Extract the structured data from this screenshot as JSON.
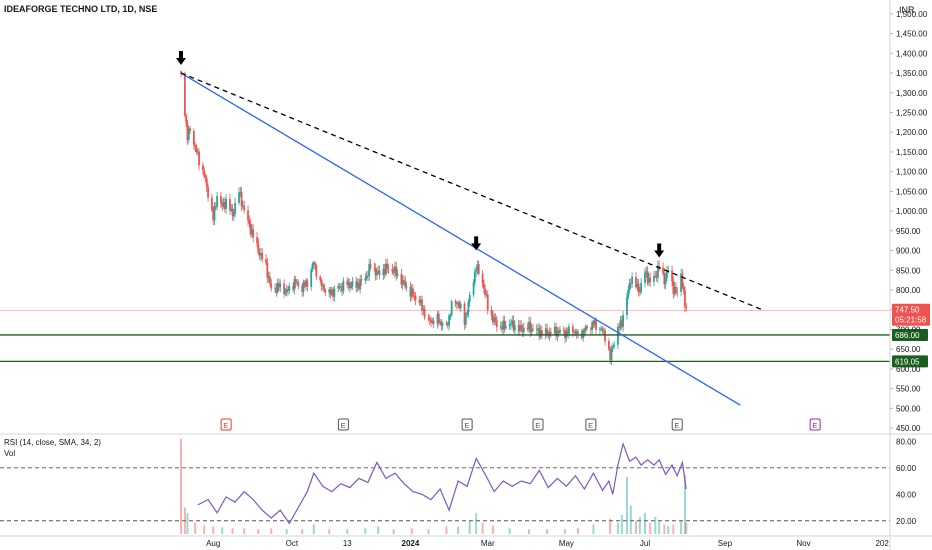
{
  "chart_data": {
    "type": "candlestick",
    "title": "IDEAFORGE TECHNO LTD, 1D, NSE",
    "currency": "INR",
    "y_axis_ticks": [
      "1,500.00",
      "1,450.00",
      "1,400.00",
      "1,350.00",
      "1,300.00",
      "1,250.00",
      "1,200.00",
      "1,150.00",
      "1,100.00",
      "1,050.00",
      "1,000.00",
      "950.00",
      "900.00",
      "850.00",
      "800.00",
      "750.00",
      "700.00",
      "650.00",
      "600.00",
      "550.00",
      "500.00",
      "450.00"
    ],
    "ylim": [
      440,
      1525
    ],
    "x_axis_labels": [
      "Aug",
      "Oct",
      "13",
      "2024",
      "Mar",
      "May",
      "Jul",
      "Sep",
      "Nov",
      "202"
    ],
    "series": [
      {
        "name": "price",
        "colors": {
          "up": "#26a69a",
          "down": "#ef5350"
        },
        "points": [
          {
            "d": "2023-07-07",
            "c": 1344
          },
          {
            "d": "2023-07-10",
            "c": 1255
          },
          {
            "d": "2023-07-12",
            "c": 1185
          },
          {
            "d": "2023-07-14",
            "c": 1210
          },
          {
            "d": "2023-07-18",
            "c": 1160
          },
          {
            "d": "2023-07-21",
            "c": 1130
          },
          {
            "d": "2023-07-25",
            "c": 1090
          },
          {
            "d": "2023-07-28",
            "c": 1045
          },
          {
            "d": "2023-08-01",
            "c": 980
          },
          {
            "d": "2023-08-04",
            "c": 1040
          },
          {
            "d": "2023-08-08",
            "c": 1010
          },
          {
            "d": "2023-08-11",
            "c": 1025
          },
          {
            "d": "2023-08-16",
            "c": 990
          },
          {
            "d": "2023-08-21",
            "c": 1050
          },
          {
            "d": "2023-08-25",
            "c": 1000
          },
          {
            "d": "2023-08-30",
            "c": 955
          },
          {
            "d": "2023-09-05",
            "c": 900
          },
          {
            "d": "2023-09-11",
            "c": 860
          },
          {
            "d": "2023-09-15",
            "c": 800
          },
          {
            "d": "2023-09-21",
            "c": 810
          },
          {
            "d": "2023-09-27",
            "c": 795
          },
          {
            "d": "2023-10-03",
            "c": 820
          },
          {
            "d": "2023-10-09",
            "c": 805
          },
          {
            "d": "2023-10-13",
            "c": 820
          },
          {
            "d": "2023-10-18",
            "c": 870
          },
          {
            "d": "2023-10-23",
            "c": 815
          },
          {
            "d": "2023-10-30",
            "c": 790
          },
          {
            "d": "2023-11-06",
            "c": 805
          },
          {
            "d": "2023-11-13",
            "c": 815
          },
          {
            "d": "2023-11-20",
            "c": 810
          },
          {
            "d": "2023-11-27",
            "c": 830
          },
          {
            "d": "2023-12-01",
            "c": 860
          },
          {
            "d": "2023-12-07",
            "c": 840
          },
          {
            "d": "2023-12-13",
            "c": 855
          },
          {
            "d": "2023-12-19",
            "c": 850
          },
          {
            "d": "2023-12-26",
            "c": 820
          },
          {
            "d": "2024-01-02",
            "c": 790
          },
          {
            "d": "2024-01-08",
            "c": 770
          },
          {
            "d": "2024-01-15",
            "c": 720
          },
          {
            "d": "2024-01-22",
            "c": 725
          },
          {
            "d": "2024-01-29",
            "c": 705
          },
          {
            "d": "2024-02-02",
            "c": 760
          },
          {
            "d": "2024-02-07",
            "c": 770
          },
          {
            "d": "2024-02-12",
            "c": 720
          },
          {
            "d": "2024-02-16",
            "c": 780
          },
          {
            "d": "2024-02-21",
            "c": 860
          },
          {
            "d": "2024-02-26",
            "c": 820
          },
          {
            "d": "2024-03-01",
            "c": 760
          },
          {
            "d": "2024-03-05",
            "c": 725
          },
          {
            "d": "2024-03-11",
            "c": 705
          },
          {
            "d": "2024-03-18",
            "c": 715
          },
          {
            "d": "2024-03-26",
            "c": 700
          },
          {
            "d": "2024-04-02",
            "c": 705
          },
          {
            "d": "2024-04-09",
            "c": 695
          },
          {
            "d": "2024-04-16",
            "c": 690
          },
          {
            "d": "2024-04-23",
            "c": 695
          },
          {
            "d": "2024-04-30",
            "c": 690
          },
          {
            "d": "2024-05-06",
            "c": 700
          },
          {
            "d": "2024-05-10",
            "c": 685
          },
          {
            "d": "2024-05-16",
            "c": 700
          },
          {
            "d": "2024-05-22",
            "c": 715
          },
          {
            "d": "2024-05-28",
            "c": 700
          },
          {
            "d": "2024-06-01",
            "c": 680
          },
          {
            "d": "2024-06-04",
            "c": 625
          },
          {
            "d": "2024-06-06",
            "c": 660
          },
          {
            "d": "2024-06-10",
            "c": 700
          },
          {
            "d": "2024-06-13",
            "c": 720
          },
          {
            "d": "2024-06-17",
            "c": 780
          },
          {
            "d": "2024-06-20",
            "c": 830
          },
          {
            "d": "2024-06-24",
            "c": 810
          },
          {
            "d": "2024-06-27",
            "c": 800
          },
          {
            "d": "2024-07-01",
            "c": 845
          },
          {
            "d": "2024-07-05",
            "c": 820
          },
          {
            "d": "2024-07-09",
            "c": 835
          },
          {
            "d": "2024-07-12",
            "c": 860
          },
          {
            "d": "2024-07-16",
            "c": 825
          },
          {
            "d": "2024-07-19",
            "c": 850
          },
          {
            "d": "2024-07-23",
            "c": 805
          },
          {
            "d": "2024-07-26",
            "c": 790
          },
          {
            "d": "2024-07-29",
            "c": 845
          },
          {
            "d": "2024-08-01",
            "c": 760
          },
          {
            "d": "2024-08-02",
            "c": 747.5
          }
        ]
      }
    ],
    "last_price": {
      "value": 747.5,
      "label": "747.50",
      "countdown": "05:21:58",
      "color": "#ef5350"
    },
    "horizontal_levels": [
      {
        "value": 686,
        "label": "686.00",
        "color": "#1b5e20"
      },
      {
        "value": 619.05,
        "label": "619.05",
        "color": "#1b5e20"
      }
    ],
    "hidden_axis_label": "700.00",
    "trendlines": [
      {
        "name": "descending support",
        "style": "solid",
        "color": "#2962ff",
        "from": {
          "d": "2023-07-07",
          "v": 1350
        },
        "to": {
          "d": "2024-09-13",
          "v": 508
        }
      },
      {
        "name": "descending resistance",
        "style": "dashed",
        "color": "#000000",
        "from": {
          "d": "2023-07-07",
          "v": 1350
        },
        "to": {
          "d": "2024-09-30",
          "v": 750
        }
      }
    ],
    "arrow_markers": [
      {
        "d": "2023-07-07",
        "v": 1350
      },
      {
        "d": "2024-02-21",
        "v": 880
      },
      {
        "d": "2024-07-12",
        "v": 862
      }
    ],
    "earnings_markers": [
      {
        "d": "2023-08-11",
        "label": "E",
        "color": "#e53935"
      },
      {
        "d": "2023-11-10",
        "label": "E",
        "color": "#555555"
      },
      {
        "d": "2024-02-14",
        "label": "E",
        "color": "#555555"
      },
      {
        "d": "2024-04-09",
        "label": "E",
        "color": "#555555"
      },
      {
        "d": "2024-05-20",
        "label": "E",
        "color": "#555555"
      },
      {
        "d": "2024-07-26",
        "label": "E",
        "color": "#555555"
      },
      {
        "d": "2024-11-10",
        "label": "E",
        "color": "#9c27b0"
      }
    ],
    "rsi_pane": {
      "legend": "RSI (14, close, SMA, 34, 2)",
      "vol_label": "Vol",
      "y_ticks": [
        "80.00",
        "60.00",
        "40.00",
        "20.00"
      ],
      "ylim": [
        10,
        84
      ],
      "upper_band": 60,
      "lower_band": 20,
      "line_color": "#7e57c2",
      "series": {
        "name": "RSI",
        "points": [
          {
            "d": "2023-07-20",
            "v": 32
          },
          {
            "d": "2023-07-28",
            "v": 36
          },
          {
            "d": "2023-08-04",
            "v": 26
          },
          {
            "d": "2023-08-11",
            "v": 38
          },
          {
            "d": "2023-08-18",
            "v": 34
          },
          {
            "d": "2023-08-25",
            "v": 42
          },
          {
            "d": "2023-09-01",
            "v": 36
          },
          {
            "d": "2023-09-08",
            "v": 28
          },
          {
            "d": "2023-09-15",
            "v": 22
          },
          {
            "d": "2023-09-22",
            "v": 28
          },
          {
            "d": "2023-09-29",
            "v": 18
          },
          {
            "d": "2023-10-06",
            "v": 30
          },
          {
            "d": "2023-10-13",
            "v": 42
          },
          {
            "d": "2023-10-18",
            "v": 56
          },
          {
            "d": "2023-10-25",
            "v": 46
          },
          {
            "d": "2023-11-01",
            "v": 42
          },
          {
            "d": "2023-11-08",
            "v": 48
          },
          {
            "d": "2023-11-15",
            "v": 45
          },
          {
            "d": "2023-11-22",
            "v": 52
          },
          {
            "d": "2023-11-29",
            "v": 49
          },
          {
            "d": "2023-12-06",
            "v": 64
          },
          {
            "d": "2023-12-13",
            "v": 52
          },
          {
            "d": "2023-12-20",
            "v": 56
          },
          {
            "d": "2023-12-27",
            "v": 48
          },
          {
            "d": "2024-01-03",
            "v": 42
          },
          {
            "d": "2024-01-10",
            "v": 40
          },
          {
            "d": "2024-01-17",
            "v": 36
          },
          {
            "d": "2024-01-24",
            "v": 44
          },
          {
            "d": "2024-01-31",
            "v": 28
          },
          {
            "d": "2024-02-07",
            "v": 50
          },
          {
            "d": "2024-02-14",
            "v": 46
          },
          {
            "d": "2024-02-21",
            "v": 67
          },
          {
            "d": "2024-02-28",
            "v": 55
          },
          {
            "d": "2024-03-06",
            "v": 42
          },
          {
            "d": "2024-03-13",
            "v": 50
          },
          {
            "d": "2024-03-20",
            "v": 46
          },
          {
            "d": "2024-03-27",
            "v": 50
          },
          {
            "d": "2024-04-03",
            "v": 48
          },
          {
            "d": "2024-04-10",
            "v": 58
          },
          {
            "d": "2024-04-17",
            "v": 45
          },
          {
            "d": "2024-04-24",
            "v": 52
          },
          {
            "d": "2024-05-01",
            "v": 46
          },
          {
            "d": "2024-05-08",
            "v": 54
          },
          {
            "d": "2024-05-15",
            "v": 44
          },
          {
            "d": "2024-05-22",
            "v": 56
          },
          {
            "d": "2024-05-29",
            "v": 43
          },
          {
            "d": "2024-06-03",
            "v": 50
          },
          {
            "d": "2024-06-06",
            "v": 40
          },
          {
            "d": "2024-06-10",
            "v": 62
          },
          {
            "d": "2024-06-14",
            "v": 78
          },
          {
            "d": "2024-06-19",
            "v": 65
          },
          {
            "d": "2024-06-24",
            "v": 68
          },
          {
            "d": "2024-06-28",
            "v": 62
          },
          {
            "d": "2024-07-03",
            "v": 66
          },
          {
            "d": "2024-07-08",
            "v": 62
          },
          {
            "d": "2024-07-12",
            "v": 66
          },
          {
            "d": "2024-07-17",
            "v": 55
          },
          {
            "d": "2024-07-22",
            "v": 62
          },
          {
            "d": "2024-07-26",
            "v": 54
          },
          {
            "d": "2024-07-30",
            "v": 64
          },
          {
            "d": "2024-08-02",
            "v": 44
          }
        ]
      },
      "volume_bars": [
        {
          "d": "2023-07-07",
          "v": 100,
          "dir": "down"
        },
        {
          "d": "2023-07-10",
          "v": 28,
          "dir": "down"
        },
        {
          "d": "2023-07-12",
          "v": 22,
          "dir": "up"
        },
        {
          "d": "2023-07-18",
          "v": 12,
          "dir": "down"
        },
        {
          "d": "2023-07-25",
          "v": 9,
          "dir": "down"
        },
        {
          "d": "2023-08-01",
          "v": 8,
          "dir": "down"
        },
        {
          "d": "2023-08-08",
          "v": 7,
          "dir": "up"
        },
        {
          "d": "2023-08-16",
          "v": 6,
          "dir": "down"
        },
        {
          "d": "2023-08-25",
          "v": 6,
          "dir": "down"
        },
        {
          "d": "2023-09-05",
          "v": 5,
          "dir": "down"
        },
        {
          "d": "2023-09-15",
          "v": 6,
          "dir": "down"
        },
        {
          "d": "2023-09-27",
          "v": 5,
          "dir": "up"
        },
        {
          "d": "2023-10-09",
          "v": 5,
          "dir": "down"
        },
        {
          "d": "2023-10-18",
          "v": 10,
          "dir": "up"
        },
        {
          "d": "2023-10-30",
          "v": 5,
          "dir": "down"
        },
        {
          "d": "2023-11-13",
          "v": 5,
          "dir": "up"
        },
        {
          "d": "2023-11-27",
          "v": 6,
          "dir": "up"
        },
        {
          "d": "2023-12-07",
          "v": 8,
          "dir": "up"
        },
        {
          "d": "2023-12-19",
          "v": 5,
          "dir": "down"
        },
        {
          "d": "2024-01-02",
          "v": 6,
          "dir": "down"
        },
        {
          "d": "2024-01-15",
          "v": 5,
          "dir": "down"
        },
        {
          "d": "2024-01-29",
          "v": 8,
          "dir": "down"
        },
        {
          "d": "2024-02-07",
          "v": 8,
          "dir": "up"
        },
        {
          "d": "2024-02-16",
          "v": 14,
          "dir": "up"
        },
        {
          "d": "2024-02-21",
          "v": 22,
          "dir": "up"
        },
        {
          "d": "2024-02-26",
          "v": 12,
          "dir": "down"
        },
        {
          "d": "2024-03-05",
          "v": 9,
          "dir": "down"
        },
        {
          "d": "2024-03-18",
          "v": 6,
          "dir": "up"
        },
        {
          "d": "2024-04-02",
          "v": 5,
          "dir": "up"
        },
        {
          "d": "2024-04-16",
          "v": 5,
          "dir": "down"
        },
        {
          "d": "2024-04-30",
          "v": 5,
          "dir": "down"
        },
        {
          "d": "2024-05-10",
          "v": 6,
          "dir": "down"
        },
        {
          "d": "2024-05-22",
          "v": 10,
          "dir": "up"
        },
        {
          "d": "2024-06-04",
          "v": 16,
          "dir": "down"
        },
        {
          "d": "2024-06-10",
          "v": 12,
          "dir": "up"
        },
        {
          "d": "2024-06-13",
          "v": 20,
          "dir": "up"
        },
        {
          "d": "2024-06-17",
          "v": 60,
          "dir": "up"
        },
        {
          "d": "2024-06-20",
          "v": 30,
          "dir": "up"
        },
        {
          "d": "2024-06-24",
          "v": 14,
          "dir": "down"
        },
        {
          "d": "2024-06-27",
          "v": 18,
          "dir": "up"
        },
        {
          "d": "2024-07-01",
          "v": 22,
          "dir": "up"
        },
        {
          "d": "2024-07-05",
          "v": 12,
          "dir": "down"
        },
        {
          "d": "2024-07-09",
          "v": 18,
          "dir": "up"
        },
        {
          "d": "2024-07-12",
          "v": 14,
          "dir": "up"
        },
        {
          "d": "2024-07-16",
          "v": 10,
          "dir": "down"
        },
        {
          "d": "2024-07-19",
          "v": 8,
          "dir": "up"
        },
        {
          "d": "2024-07-23",
          "v": 10,
          "dir": "down"
        },
        {
          "d": "2024-07-29",
          "v": 14,
          "dir": "up"
        },
        {
          "d": "2024-08-01",
          "v": 62,
          "dir": "up"
        },
        {
          "d": "2024-08-02",
          "v": 12,
          "dir": "down"
        }
      ]
    }
  }
}
